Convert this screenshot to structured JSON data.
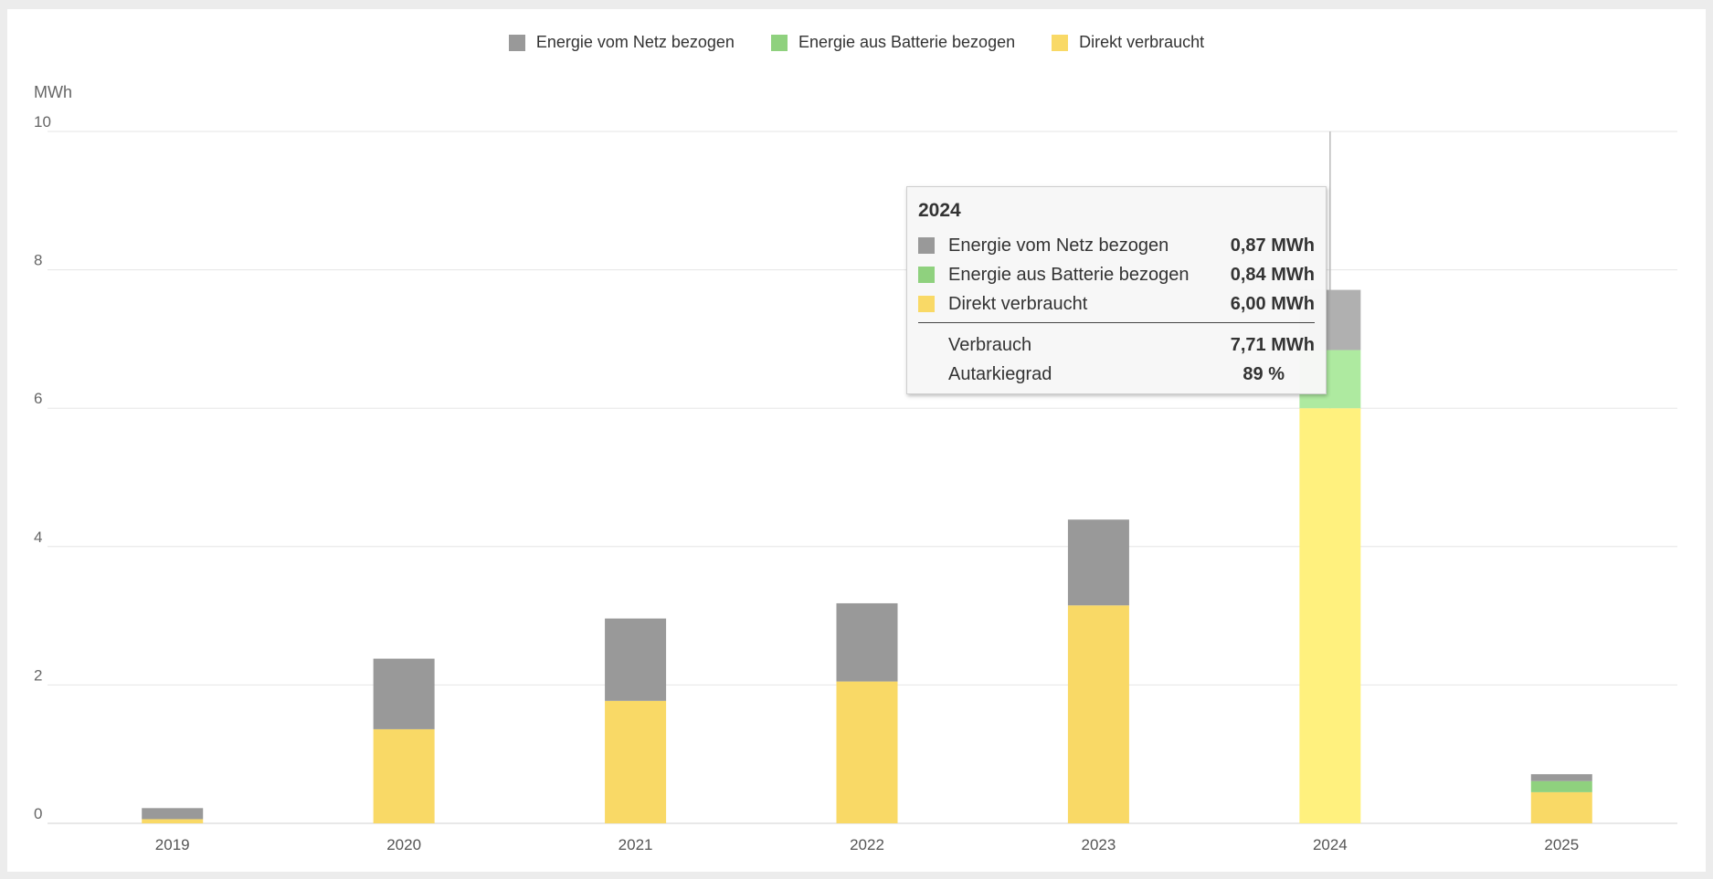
{
  "legend": [
    {
      "label": "Energie vom Netz bezogen",
      "color": "#999999"
    },
    {
      "label": "Energie aus Batterie bezogen",
      "color": "#8fd17e"
    },
    {
      "label": "Direkt verbraucht",
      "color": "#f9d966"
    }
  ],
  "chart_data": {
    "type": "bar",
    "stacked": true,
    "ylabel": "MWh",
    "ylim": [
      0,
      10
    ],
    "yticks": [
      "0",
      "2",
      "4",
      "6",
      "8",
      "10"
    ],
    "grid": true,
    "legend_position": "top-center",
    "categories": [
      "2019",
      "2020",
      "2021",
      "2022",
      "2023",
      "2024",
      "2025"
    ],
    "series": [
      {
        "name": "Direkt verbraucht",
        "color": "#f9d966",
        "values": [
          0.06,
          1.36,
          1.77,
          2.05,
          3.15,
          6.0,
          0.45
        ]
      },
      {
        "name": "Energie aus Batterie bezogen",
        "color": "#8fd17e",
        "values": [
          0,
          0,
          0,
          0,
          0,
          0.84,
          0.16
        ]
      },
      {
        "name": "Energie vom Netz bezogen",
        "color": "#999999",
        "values": [
          0.16,
          1.02,
          1.19,
          1.13,
          1.24,
          0.87,
          0.1
        ]
      }
    ],
    "highlighted_category": "2024",
    "highlight_colors": {
      "Direkt verbraucht": "#fff17e",
      "Energie aus Batterie bezogen": "#aeeaa0",
      "Energie vom Netz bezogen": "#b0b0b0"
    }
  },
  "tooltip": {
    "title": "2024",
    "rows": [
      {
        "label": "Energie vom Netz bezogen",
        "value": "0,87 MWh",
        "color": "#999999"
      },
      {
        "label": "Energie aus Batterie bezogen",
        "value": "0,84 MWh",
        "color": "#8fd17e"
      },
      {
        "label": "Direkt verbraucht",
        "value": "6,00 MWh",
        "color": "#f9d966"
      }
    ],
    "total_label": "Verbrauch",
    "total_value": "7,71 MWh",
    "autarky_label": "Autarkiegrad",
    "autarky_value": "89 %"
  }
}
